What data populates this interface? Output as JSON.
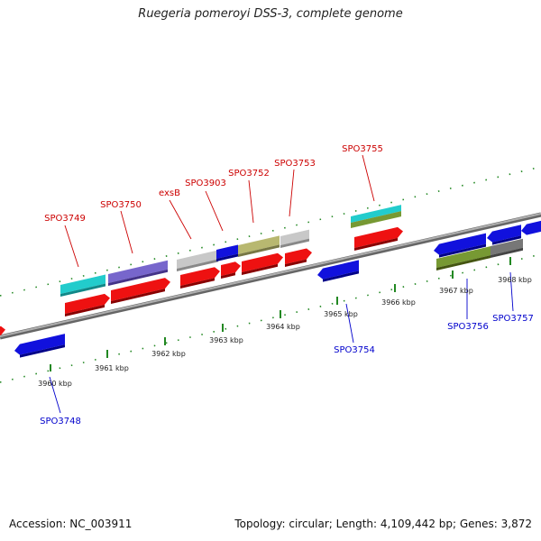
{
  "title": "Ruegeria pomeroyi DSS-3, complete genome",
  "footer": {
    "accession": "Accession: NC_003911",
    "topology": "Topology: circular; Length: 4,109,442 bp; Genes: 3,872"
  },
  "colors": {
    "forward_label": "#cc0000",
    "reverse_label": "#0000cc",
    "backbone": "#888888",
    "gc_ticks": "#228822",
    "cds_forward": "#ee1111",
    "cds_reverse": "#1111dd",
    "cyan": "#22cccc",
    "purple": "#7766cc",
    "grey": "#c8c8c8",
    "olive": "#b8b870",
    "darkolive": "#779933",
    "darkgrey": "#777777"
  },
  "ticks": [
    "3960 kbp",
    "3961 kbp",
    "3962 kbp",
    "3963 kbp",
    "3964 kbp",
    "3965 kbp",
    "3966 kbp",
    "3967 kbp",
    "3968 kbp"
  ],
  "forward_labels": [
    "SPO3749",
    "SPO3750",
    "exsB",
    "SPO3903",
    "SPO3752",
    "SPO3753",
    "SPO3755"
  ],
  "reverse_labels": [
    "SPO3748",
    "SPO3754",
    "SPO3756",
    "SPO3757"
  ]
}
